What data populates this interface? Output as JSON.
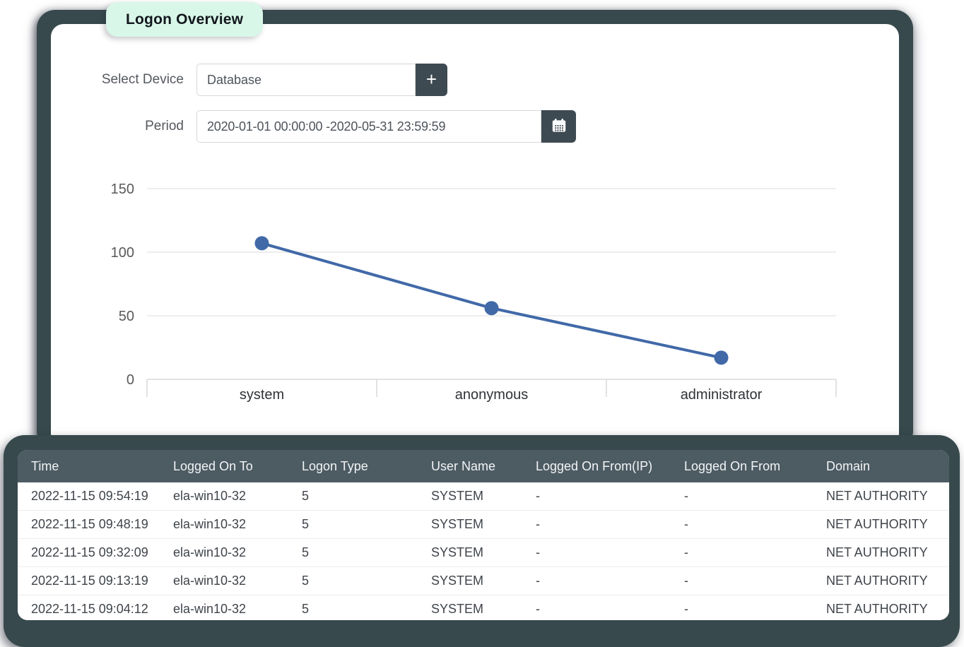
{
  "page_title_badge": "Logon Overview",
  "colors": {
    "badge_bg": "#d9f7e8",
    "frame_dark": "#37494c",
    "button_dark": "#3e4a52",
    "table_header_bg": "#4d5b63",
    "chart_line": "#4169a8"
  },
  "form": {
    "device_label": "Select Device",
    "device_value": "Database",
    "add_button_glyph": "+",
    "period_label": "Period",
    "period_value": "2020-01-01 00:00:00 -2020-05-31 23:59:59"
  },
  "icons": {
    "plus_icon": "plus",
    "calendar_icon": "calendar"
  },
  "chart_data": {
    "type": "line",
    "categories": [
      "system",
      "anonymous",
      "administrator"
    ],
    "values": [
      107,
      56,
      17
    ],
    "yticks": [
      0,
      50,
      100,
      150
    ],
    "ylim": [
      0,
      166
    ],
    "grid": true,
    "legend": "none",
    "title": "",
    "xlabel": "",
    "ylabel": ""
  },
  "table": {
    "columns": [
      "Time",
      "Logged On To",
      "Logon Type",
      "User Name",
      "Logged On From(IP)",
      "Logged On From",
      "Domain"
    ],
    "rows": [
      [
        "2022-11-15 09:54:19",
        "ela-win10-32",
        "5",
        "SYSTEM",
        "-",
        "-",
        "NET AUTHORITY"
      ],
      [
        "2022-11-15 09:48:19",
        "ela-win10-32",
        "5",
        "SYSTEM",
        "-",
        "-",
        "NET AUTHORITY"
      ],
      [
        "2022-11-15 09:32:09",
        "ela-win10-32",
        "5",
        "SYSTEM",
        "-",
        "-",
        "NET AUTHORITY"
      ],
      [
        "2022-11-15 09:13:19",
        "ela-win10-32",
        "5",
        "SYSTEM",
        "-",
        "-",
        "NET AUTHORITY"
      ],
      [
        "2022-11-15 09:04:12",
        "ela-win10-32",
        "5",
        "SYSTEM",
        "-",
        "-",
        "NET AUTHORITY"
      ]
    ]
  }
}
